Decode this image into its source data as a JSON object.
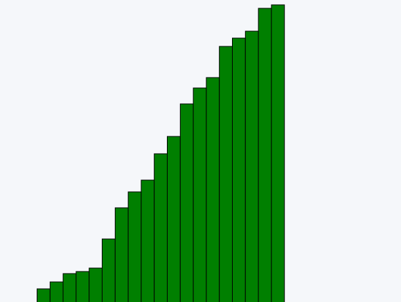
{
  "chart_data": {
    "type": "bar",
    "values": [
      19,
      29,
      41,
      44,
      49,
      91,
      136,
      159,
      176,
      214,
      239,
      286,
      309,
      324,
      369,
      381,
      391,
      424,
      429
    ],
    "title": "",
    "xlabel": "",
    "ylabel": "",
    "grid": false,
    "legend": "none",
    "colors": {
      "background": "#f5f7fa",
      "bar_fill": "#007f00",
      "bar_stroke": "#000000"
    }
  }
}
